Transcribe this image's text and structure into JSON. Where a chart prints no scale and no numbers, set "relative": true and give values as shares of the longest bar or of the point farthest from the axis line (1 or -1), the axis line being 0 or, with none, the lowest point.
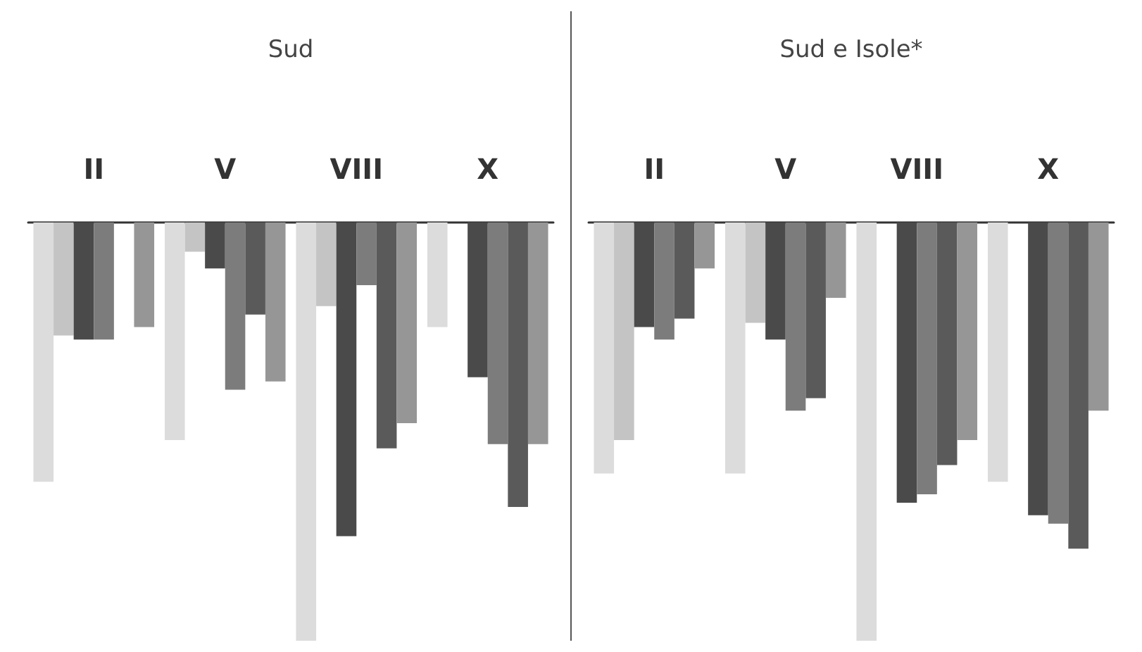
{
  "chart_data": [
    {
      "type": "bar",
      "title": "Sud",
      "relative": true,
      "categories": [
        "II",
        "V",
        "VIII",
        "X"
      ],
      "series": [
        {
          "color": "#dcdcdc",
          "values": [
            -0.62,
            -0.52,
            -1,
            -0.25
          ]
        },
        {
          "color": "#c4c4c4",
          "values": [
            -0.27,
            -0.07,
            -0.2,
            null
          ]
        },
        {
          "color": "#4a4a4a",
          "values": [
            -0.28,
            -0.11,
            -0.75,
            -0.37
          ]
        },
        {
          "color": "#7c7c7c",
          "values": [
            -0.28,
            -0.4,
            -0.15,
            -0.53
          ]
        },
        {
          "color": "#5a5a5a",
          "values": [
            null,
            -0.22,
            -0.54,
            -0.68
          ]
        },
        {
          "color": "#969696",
          "values": [
            -0.25,
            -0.38,
            -0.48,
            -0.53
          ]
        }
      ]
    },
    {
      "type": "bar",
      "title": "Sud e Isole*",
      "relative": true,
      "categories": [
        "II",
        "V",
        "VIII",
        "X"
      ],
      "series": [
        {
          "color": "#dcdcdc",
          "values": [
            -0.6,
            -0.6,
            -1,
            -0.62
          ]
        },
        {
          "color": "#c4c4c4",
          "values": [
            -0.52,
            -0.24,
            null,
            null
          ]
        },
        {
          "color": "#4a4a4a",
          "values": [
            -0.25,
            -0.28,
            -0.67,
            -0.7
          ]
        },
        {
          "color": "#7c7c7c",
          "values": [
            -0.28,
            -0.45,
            -0.65,
            -0.72
          ]
        },
        {
          "color": "#5a5a5a",
          "values": [
            -0.23,
            -0.42,
            -0.58,
            -0.78
          ]
        },
        {
          "color": "#969696",
          "values": [
            -0.11,
            -0.18,
            -0.52,
            -0.45
          ]
        }
      ]
    }
  ]
}
